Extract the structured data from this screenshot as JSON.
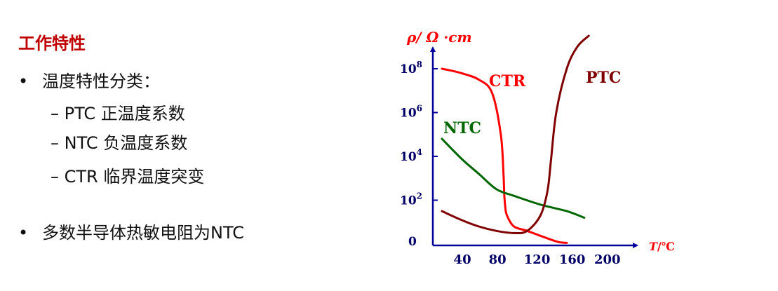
{
  "slide": {
    "title": "工作特性",
    "bullets": [
      {
        "text": "温度特性分类：",
        "sub": [
          "– PTC 正温度系数",
          "– NTC 负温度系数",
          "– CTR 临界温度突变"
        ]
      },
      {
        "text": "多数半导体热敏电阻为NTC",
        "sub": []
      }
    ],
    "bullet_glyph": "•"
  },
  "chart_data": {
    "type": "line",
    "ylabel": "ρ/ Ω ·cm",
    "xlabel_T": "T",
    "xlabel_unit": "/℃",
    "xticks": [
      "40",
      "80",
      "120",
      "160",
      "200"
    ],
    "yticks": [
      "0",
      "10",
      "10",
      "10",
      "10"
    ],
    "ytick_exponents": [
      "",
      "2",
      "4",
      "6",
      "8"
    ],
    "xtick_values": [
      40,
      80,
      120,
      160,
      200
    ],
    "ytick_values": [
      0,
      2,
      4,
      6,
      8
    ],
    "xlim": [
      20,
      240
    ],
    "ylim": [
      0,
      9.5
    ],
    "series": [
      {
        "name": "CTR",
        "color": "#ff0000",
        "x": [
          18,
          40,
          60,
          75,
          85,
          88,
          89,
          90,
          92,
          100,
          115,
          135,
          150,
          160
        ],
        "y": [
          8.0,
          7.8,
          7.5,
          6.9,
          5.0,
          3.2,
          2.2,
          1.7,
          1.3,
          0.8,
          0.6,
          0.3,
          0.1,
          0.05
        ]
      },
      {
        "name": "NTC",
        "color": "#006600",
        "x": [
          18,
          40,
          60,
          80,
          100,
          130,
          160,
          180
        ],
        "y": [
          4.8,
          3.9,
          3.2,
          2.5,
          2.2,
          1.8,
          1.5,
          1.2
        ]
      },
      {
        "name": "PTC",
        "color": "#800000",
        "x": [
          18,
          40,
          60,
          80,
          100,
          115,
          130,
          138,
          142,
          148,
          160,
          172,
          185
        ],
        "y": [
          1.5,
          1.1,
          0.8,
          0.6,
          0.5,
          0.6,
          1.3,
          2.4,
          3.8,
          6.0,
          8.0,
          9.0,
          9.5
        ]
      }
    ]
  }
}
